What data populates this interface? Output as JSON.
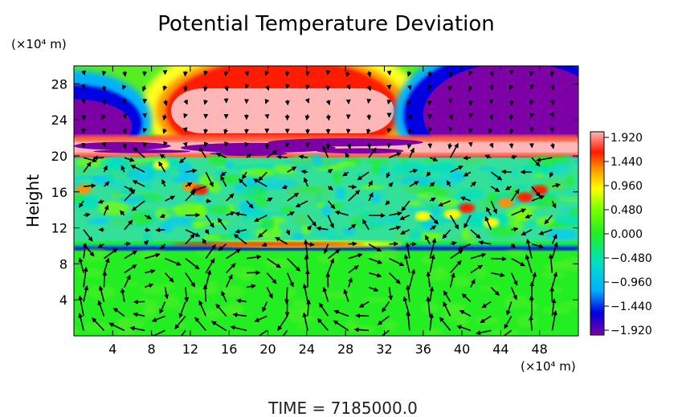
{
  "chart_data": {
    "type": "heatmap",
    "title": "Potential Temperature Deviation",
    "ylabel": "Height",
    "xunit_label": "(×10⁴ m)",
    "yunit_label": "(×10⁴ m)",
    "xlim": [
      0,
      52
    ],
    "ylim": [
      0,
      30
    ],
    "xticks": [
      4,
      8,
      12,
      16,
      20,
      24,
      28,
      32,
      36,
      40,
      44,
      48
    ],
    "yticks": [
      4,
      8,
      12,
      16,
      20,
      24,
      28
    ],
    "colorbar": {
      "ticks": [
        "1.920",
        "1.440",
        "0.960",
        "0.480",
        "0.000",
        "-0.480",
        "-0.960",
        "-1.440",
        "-1.920"
      ],
      "range": [
        -1.92,
        1.92
      ],
      "colors": [
        "#7c00a6",
        "#0000e0",
        "#00b0ff",
        "#00e0c0",
        "#22ee22",
        "#7cff00",
        "#ffff00",
        "#ff9000",
        "#ff1a00",
        "#ffb6b6"
      ]
    },
    "footer": "TIME  =  7185000.0",
    "fields": {
      "upper_warm_dome": {
        "x_range": [
          10,
          33
        ],
        "y_range": [
          22.5,
          27.5
        ],
        "value": 1.92
      },
      "upper_cold_right": {
        "x_range": [
          34,
          52
        ],
        "y_range": [
          22,
          27.5
        ],
        "value": -1.92
      },
      "upper_cold_left": {
        "x_range": [
          0,
          6
        ],
        "y_range": [
          22,
          25
        ],
        "value": -1.92
      },
      "warm_layer": {
        "x_range": [
          0,
          52
        ],
        "y_range": [
          20,
          22
        ],
        "value": 1.2
      },
      "cold_streak": {
        "x_range": [
          11,
          36
        ],
        "y_range": [
          20.5,
          22
        ],
        "value": -1.92
      },
      "midlevel_noise": {
        "y_range": [
          10,
          20
        ],
        "value": 0.3
      },
      "cold_band": {
        "y": 9.8,
        "value": -1.2
      },
      "warm_band": {
        "x_range": [
          14,
          34
        ],
        "y": 10.2,
        "value": 0.9
      },
      "lower_layer": {
        "y_range": [
          0,
          9.5
        ],
        "value": 0.05
      }
    }
  }
}
